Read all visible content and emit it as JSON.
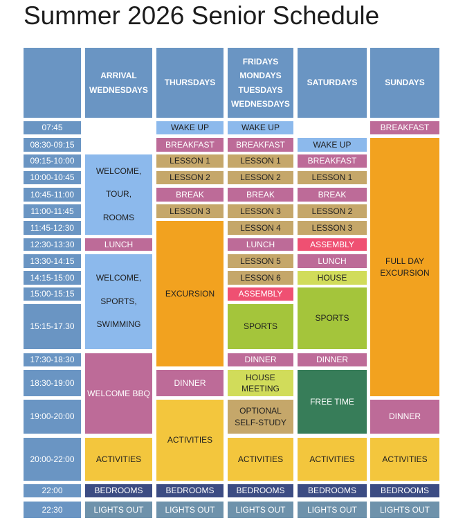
{
  "title": "Summer 2026 Senior Schedule",
  "colors": {
    "header": "#6a95c3",
    "wake_up": "#8cb9ec",
    "meal": "#bd6b98",
    "lesson": "#c5a76a",
    "assembly": "#ef5072",
    "house": "#d1dc5a",
    "sports": "#a4c53b",
    "excursion": "#f2a21f",
    "activities": "#f3c63d",
    "free_time": "#377d59",
    "bedrooms": "#3c4c83",
    "lights_out": "#6e92ab"
  },
  "headers": [
    "",
    "ARRIVAL\nWEDNESDAYS",
    "THURSDAYS",
    "FRIDAYS\nMONDAYS\nTUESDAYS\nWEDNESDAYS",
    "SATURDAYS",
    "SUNDAYS"
  ],
  "times": [
    "07:45",
    "08:30-09:15",
    "09:15-10:00",
    "10:00-10:45",
    "10:45-11:00",
    "11:00-11:45",
    "11:45-12:30",
    "12:30-13:30",
    "13:30-14:15",
    "14:15-15:00",
    "15:00-15:15",
    "15:15-17.30",
    "17:30-18:30",
    "18:30-19:00",
    "19:00-20:00",
    "20:00-22:00",
    "22:00",
    "22:30"
  ],
  "activities": {
    "wake_up": "WAKE UP",
    "breakfast": "BREAKFAST",
    "lesson_1": "LESSON 1",
    "lesson_2": "LESSON 2",
    "lesson_3": "LESSON 3",
    "lesson_4": "LESSON 4",
    "lesson_5": "LESSON 5",
    "lesson_6": "LESSON 6",
    "break": "BREAK",
    "lunch": "LUNCH",
    "assembly": "ASSEMBLY",
    "house": "HOUSE",
    "sports": "SPORTS",
    "dinner": "DINNER",
    "activities": "ACTIVITIES",
    "bedrooms": "BEDROOMS",
    "lights_out": "LIGHTS OUT",
    "excursion": "EXCURSION",
    "full_day_excursion": "FULL DAY\nEXCURSION",
    "welcome_tour_rooms": "WELCOME,\nTOUR,\nROOMS",
    "welcome_sports_swimming": "WELCOME,\nSPORTS,\nSWIMMING",
    "welcome_bbq": "WELCOME BBQ",
    "house_meeting": "HOUSE\nMEETING",
    "optional_self_study": "OPTIONAL\nSELF-STUDY",
    "free_time": "FREE TIME"
  }
}
